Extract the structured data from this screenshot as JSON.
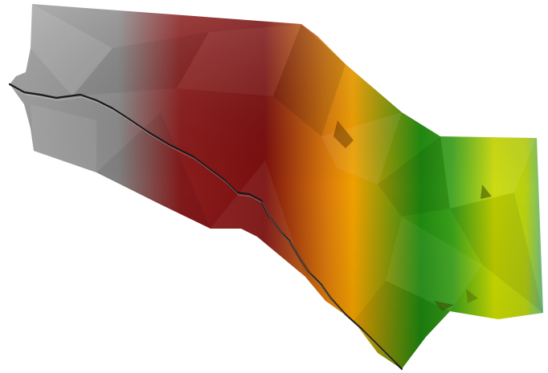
{
  "scene": {
    "background_color": "#ffffff",
    "surface_colormap": [
      "#9e9e9e",
      "#8a8a8a",
      "#8b1c1c",
      "#7a0f0f",
      "#d97a0c",
      "#f0a000",
      "#1f8a10",
      "#3aa01a",
      "#c8d800",
      "#b8d010",
      "#5fb89a"
    ],
    "fault_line_color": "#1a1a1a"
  }
}
